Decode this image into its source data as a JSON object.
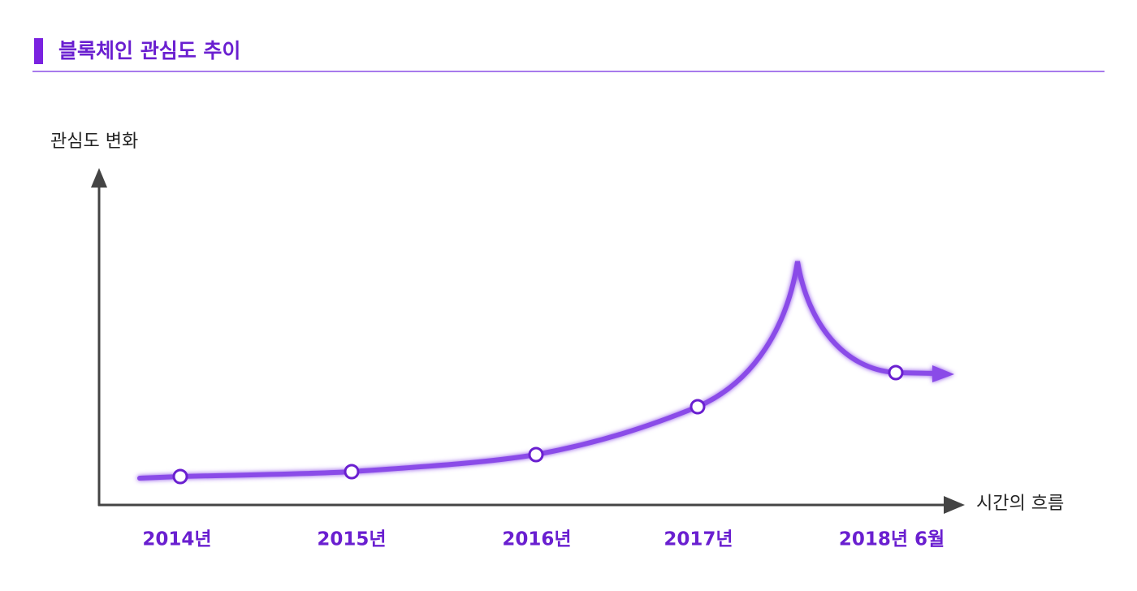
{
  "header": {
    "title": "블록체인 관심도 추이"
  },
  "diagram": {
    "y_axis_label": "관심도 변화",
    "x_axis_label": "시간의 흐름",
    "milestones": [
      "2014년",
      "2015년",
      "2016년",
      "2017년",
      "2018년 6월"
    ]
  }
}
